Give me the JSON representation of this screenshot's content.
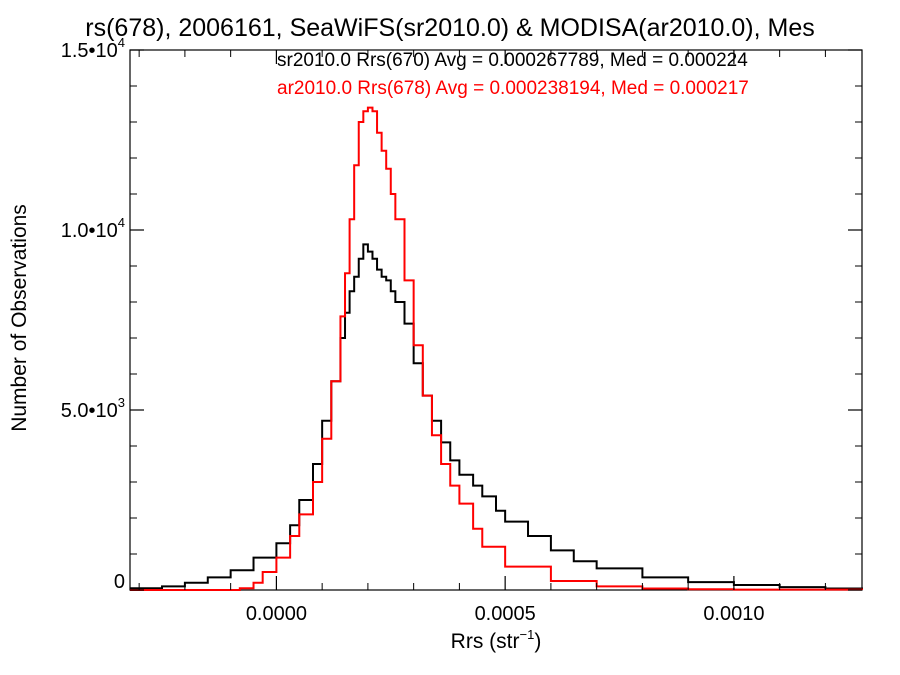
{
  "chart_data": {
    "type": "line",
    "title": "rs(678), 2006161, SeaWiFS(sr2010.0) & MODISA(ar2010.0), Mes",
    "xlabel": "Rrs (str",
    "xlabel_sup": "−1",
    "xlabel_close": ")",
    "ylabel": "Number of Observations",
    "xlim": [
      -0.00032,
      0.00128
    ],
    "ylim": [
      0,
      15000
    ],
    "x_ticks": [
      {
        "value": 0.0,
        "label": "0.0000"
      },
      {
        "value": 0.0005,
        "label": "0.0005"
      },
      {
        "value": 0.001,
        "label": "0.0010"
      }
    ],
    "y_ticks": [
      {
        "value": 0,
        "mant": "0",
        "exp": ""
      },
      {
        "value": 5000,
        "mant": "5.0•10",
        "exp": "3"
      },
      {
        "value": 10000,
        "mant": "1.0•10",
        "exp": "4"
      },
      {
        "value": 15000,
        "mant": "1.5•10",
        "exp": "4"
      }
    ],
    "legend_placement": "top-right",
    "series": [
      {
        "name": "sr2010.0 Rrs(670) Avg = 0.000267789, Med = 0.000224",
        "color": "#000000",
        "style": "step",
        "x": [
          -0.00032,
          -0.00025,
          -0.0002,
          -0.00015,
          -0.0001,
          -5e-05,
          0.0,
          3e-05,
          5e-05,
          8e-05,
          0.0001,
          0.00012,
          0.00014,
          0.00015,
          0.00016,
          0.00017,
          0.00018,
          0.00019,
          0.0002,
          0.00021,
          0.00022,
          0.00023,
          0.00024,
          0.00025,
          0.00026,
          0.00028,
          0.0003,
          0.00032,
          0.00034,
          0.00036,
          0.00038,
          0.0004,
          0.00043,
          0.00045,
          0.00048,
          0.0005,
          0.00055,
          0.0006,
          0.00065,
          0.0007,
          0.0008,
          0.0009,
          0.001,
          0.0011,
          0.0012,
          0.00128
        ],
        "values": [
          50,
          100,
          200,
          350,
          550,
          900,
          1300,
          1800,
          2500,
          3500,
          4700,
          5800,
          7000,
          7700,
          8300,
          8700,
          9200,
          9600,
          9400,
          9200,
          8900,
          8700,
          8600,
          8300,
          8000,
          7400,
          6300,
          5400,
          4700,
          4100,
          3600,
          3200,
          2900,
          2600,
          2200,
          1900,
          1500,
          1100,
          800,
          600,
          350,
          220,
          140,
          80,
          40,
          20
        ]
      },
      {
        "name": "ar2010.0 Rrs(678) Avg = 0.000238194, Med = 0.000217",
        "color": "#ff0000",
        "style": "step",
        "x": [
          -0.00032,
          -0.0002,
          -0.0001,
          -8e-05,
          -5e-05,
          -3e-05,
          0.0,
          3e-05,
          5e-05,
          8e-05,
          0.0001,
          0.00012,
          0.00014,
          0.00015,
          0.00016,
          0.00017,
          0.00018,
          0.00019,
          0.0002,
          0.00021,
          0.00022,
          0.00023,
          0.00024,
          0.00025,
          0.00026,
          0.00028,
          0.0003,
          0.00032,
          0.00034,
          0.00036,
          0.00038,
          0.0004,
          0.00043,
          0.00045,
          0.0005,
          0.0006,
          0.0007,
          0.0008,
          0.0009,
          0.001,
          0.00128
        ],
        "values": [
          0,
          0,
          0,
          50,
          200,
          500,
          900,
          1500,
          2100,
          3000,
          4200,
          5800,
          7600,
          8800,
          10300,
          11800,
          13000,
          13300,
          13400,
          13300,
          12700,
          12200,
          11700,
          11000,
          10300,
          8600,
          6800,
          5400,
          4300,
          3500,
          2900,
          2400,
          1700,
          1200,
          650,
          250,
          100,
          40,
          20,
          10,
          0
        ]
      }
    ]
  }
}
